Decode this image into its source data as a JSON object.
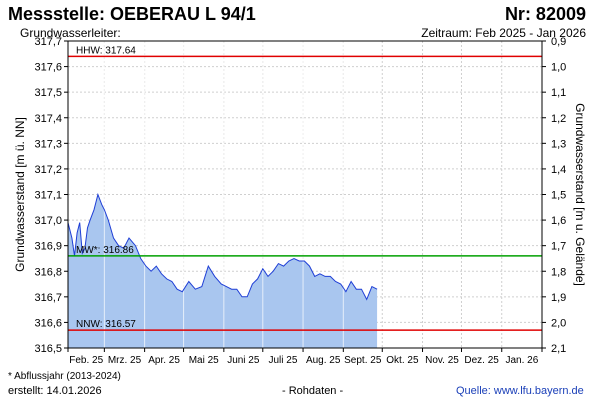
{
  "header": {
    "title": "Messstelle: OEBERAU L 94/1",
    "number": "Nr: 82009",
    "aquifer": "Grundwasserleiter:",
    "period": "Zeitraum: Feb 2025 - Jan 2026"
  },
  "footer": {
    "footnote": "* Abflussjahr (2013-2024)",
    "created": "erstellt:  14.01.2026",
    "raw_data": "- Rohdaten -",
    "source": "Quelle:  www.lfu.bayern.de"
  },
  "chart_data": {
    "type": "area",
    "xlabel": "",
    "ylabel": "Grundwasserstand [m ü. NN]",
    "y2label": "Grundwasserstand [m u. Gelände]",
    "ylim": [
      316.5,
      317.7
    ],
    "y2lim": [
      2.1,
      0.9
    ],
    "yticks": [
      "316,5",
      "316,6",
      "316,7",
      "316,8",
      "316,9",
      "317,0",
      "317,1",
      "317,2",
      "317,3",
      "317,4",
      "317,5",
      "317,6",
      "317,7"
    ],
    "y2ticks": [
      "2,1",
      "2,0",
      "1,9",
      "1,8",
      "1,7",
      "1,6",
      "1,5",
      "1,4",
      "1,3",
      "1,2",
      "1,1",
      "1,0",
      "0,9"
    ],
    "xticks": [
      "Feb. 25",
      "Mrz. 25",
      "Apr. 25",
      "Mai 25",
      "Juni 25",
      "Juli 25",
      "Aug. 25",
      "Sept. 25",
      "Okt. 25",
      "Nov. 25",
      "Dez. 25",
      "Jan. 26"
    ],
    "grid": true,
    "reference_lines": [
      {
        "label": "HHW: 317.64",
        "value": 317.64,
        "color": "#e00000"
      },
      {
        "label": "MW*: 316.86",
        "value": 316.86,
        "color": "#00a000"
      },
      {
        "label": "NNW: 316.57",
        "value": 316.57,
        "color": "#e00000"
      }
    ],
    "series": [
      {
        "color": "#1f3fd6",
        "fill": "#a9c6ef",
        "x": [
          "2025-02-01",
          "2025-02-04",
          "2025-02-06",
          "2025-02-08",
          "2025-02-10",
          "2025-02-12",
          "2025-02-14",
          "2025-02-16",
          "2025-02-18",
          "2025-02-21",
          "2025-02-24",
          "2025-02-27",
          "2025-03-01",
          "2025-03-04",
          "2025-03-08",
          "2025-03-12",
          "2025-03-16",
          "2025-03-20",
          "2025-03-25",
          "2025-03-29",
          "2025-04-02",
          "2025-04-06",
          "2025-04-10",
          "2025-04-14",
          "2025-04-18",
          "2025-04-22",
          "2025-04-26",
          "2025-04-30",
          "2025-05-05",
          "2025-05-10",
          "2025-05-15",
          "2025-05-20",
          "2025-05-25",
          "2025-05-30",
          "2025-06-03",
          "2025-06-07",
          "2025-06-11",
          "2025-06-15",
          "2025-06-19",
          "2025-06-23",
          "2025-06-27",
          "2025-07-01",
          "2025-07-05",
          "2025-07-09",
          "2025-07-13",
          "2025-07-17",
          "2025-07-21",
          "2025-07-25",
          "2025-07-29",
          "2025-08-02",
          "2025-08-06",
          "2025-08-10",
          "2025-08-14",
          "2025-08-18",
          "2025-08-22",
          "2025-08-26",
          "2025-08-30",
          "2025-09-03",
          "2025-09-07",
          "2025-09-11",
          "2025-09-15",
          "2025-09-19",
          "2025-09-23",
          "2025-09-27"
        ],
        "values": [
          316.99,
          316.93,
          316.86,
          316.95,
          316.99,
          316.87,
          316.89,
          316.97,
          317.0,
          317.04,
          317.1,
          317.06,
          317.04,
          317.0,
          316.93,
          316.9,
          316.89,
          316.93,
          316.9,
          316.85,
          316.82,
          316.8,
          316.82,
          316.79,
          316.77,
          316.76,
          316.73,
          316.72,
          316.76,
          316.73,
          316.74,
          316.82,
          316.78,
          316.75,
          316.74,
          316.73,
          316.73,
          316.7,
          316.7,
          316.75,
          316.77,
          316.81,
          316.78,
          316.8,
          316.83,
          316.82,
          316.84,
          316.85,
          316.84,
          316.84,
          316.82,
          316.78,
          316.79,
          316.78,
          316.78,
          316.76,
          316.75,
          316.72,
          316.76,
          316.73,
          316.73,
          316.69,
          316.74,
          316.73
        ]
      }
    ]
  }
}
